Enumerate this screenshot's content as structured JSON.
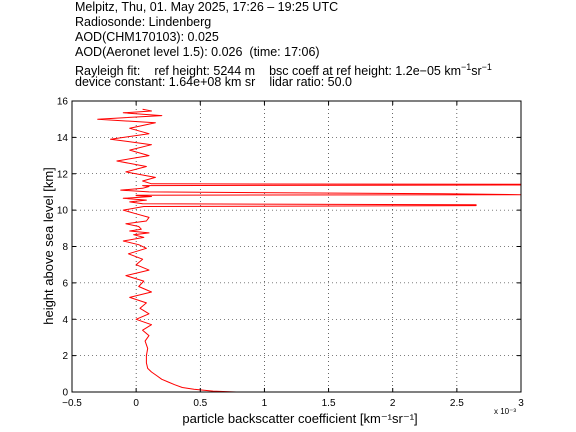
{
  "header": {
    "line1": "Melpitz, Thu, 01. May 2025, 17:26 – 19:25 UTC",
    "line2": "Radiosonde: Lindenberg",
    "line3": "AOD(CHM170103): 0.025",
    "line4_a": "AOD(Aeronet level 1.5): 0.026",
    "line4_b": "(time: 17:06)",
    "rayleigh_label": "Rayleigh fit:",
    "ref_height": "ref height: 5244 m",
    "bsc_coeff": "bsc coeff at ref height: 1.2e−05 km",
    "device_constant": "device constant: 1.64e+08 km sr",
    "lidar_ratio": "lidar ratio: 50.0"
  },
  "chart_data": {
    "type": "line",
    "xlabel": "particle backscatter coefficient [km⁻¹sr⁻¹]",
    "ylabel": "height above sea level [km]",
    "x_scale_note": "x 10⁻³",
    "xlim": [
      -0.5,
      3
    ],
    "ylim": [
      0,
      16
    ],
    "xticks": [
      "−0.5",
      "0",
      "0.5",
      "1",
      "1.5",
      "2",
      "2.5",
      "3"
    ],
    "yticks": [
      "0",
      "2",
      "4",
      "6",
      "8",
      "10",
      "12",
      "14",
      "16"
    ],
    "grid": true,
    "series": [
      {
        "color": "#ff0000",
        "x": [
          0.78,
          0.6,
          0.45,
          0.36,
          0.3,
          0.25,
          0.2,
          0.16,
          0.12,
          0.09,
          0.08,
          0.08,
          0.09,
          0.07,
          0.1,
          0.05,
          0.12,
          0.0,
          0.1,
          0.03,
          0.08,
          -0.05,
          0.12,
          0.02,
          0.06,
          -0.08,
          0.1,
          0.0,
          0.05,
          -0.06,
          0.08,
          0.02,
          -0.1,
          0.06,
          -0.02,
          0.1,
          -0.05,
          0.04,
          0.02,
          -0.08,
          0.08,
          0.1,
          0.0,
          -0.1,
          0.06,
          2.65,
          2.65,
          0.05,
          -0.05,
          0.08,
          -0.1,
          0.12,
          0.0,
          0.0,
          3.0,
          2.4,
          0.1,
          -0.12,
          0.05,
          0.1,
          0.05,
          3.0,
          3.0,
          0.12,
          0.05,
          0.15,
          -0.08,
          0.08,
          -0.15,
          0.1,
          -0.05,
          0.12,
          -0.2,
          0.1,
          -0.05,
          0.15,
          -0.3,
          0.2,
          -0.1,
          0.12,
          0.05
        ],
        "y": [
          0.0,
          0.05,
          0.15,
          0.25,
          0.4,
          0.55,
          0.7,
          0.9,
          1.1,
          1.3,
          1.6,
          2.0,
          2.4,
          2.8,
          3.1,
          3.4,
          3.7,
          4.0,
          4.3,
          4.6,
          4.9,
          5.2,
          5.5,
          5.8,
          6.1,
          6.4,
          6.7,
          7.0,
          7.3,
          7.6,
          7.9,
          8.1,
          8.3,
          8.5,
          8.65,
          8.75,
          8.85,
          8.95,
          9.1,
          9.25,
          9.4,
          9.6,
          9.8,
          10.0,
          10.2,
          10.25,
          10.3,
          10.35,
          10.45,
          10.55,
          10.65,
          10.75,
          10.8,
          10.82,
          10.85,
          10.9,
          11.0,
          11.1,
          11.2,
          11.3,
          11.35,
          11.38,
          11.42,
          11.45,
          11.6,
          11.8,
          12.1,
          12.4,
          12.7,
          13.0,
          13.3,
          13.6,
          13.9,
          14.2,
          14.5,
          14.8,
          15.0,
          15.2,
          15.35,
          15.45,
          15.55
        ]
      }
    ]
  }
}
